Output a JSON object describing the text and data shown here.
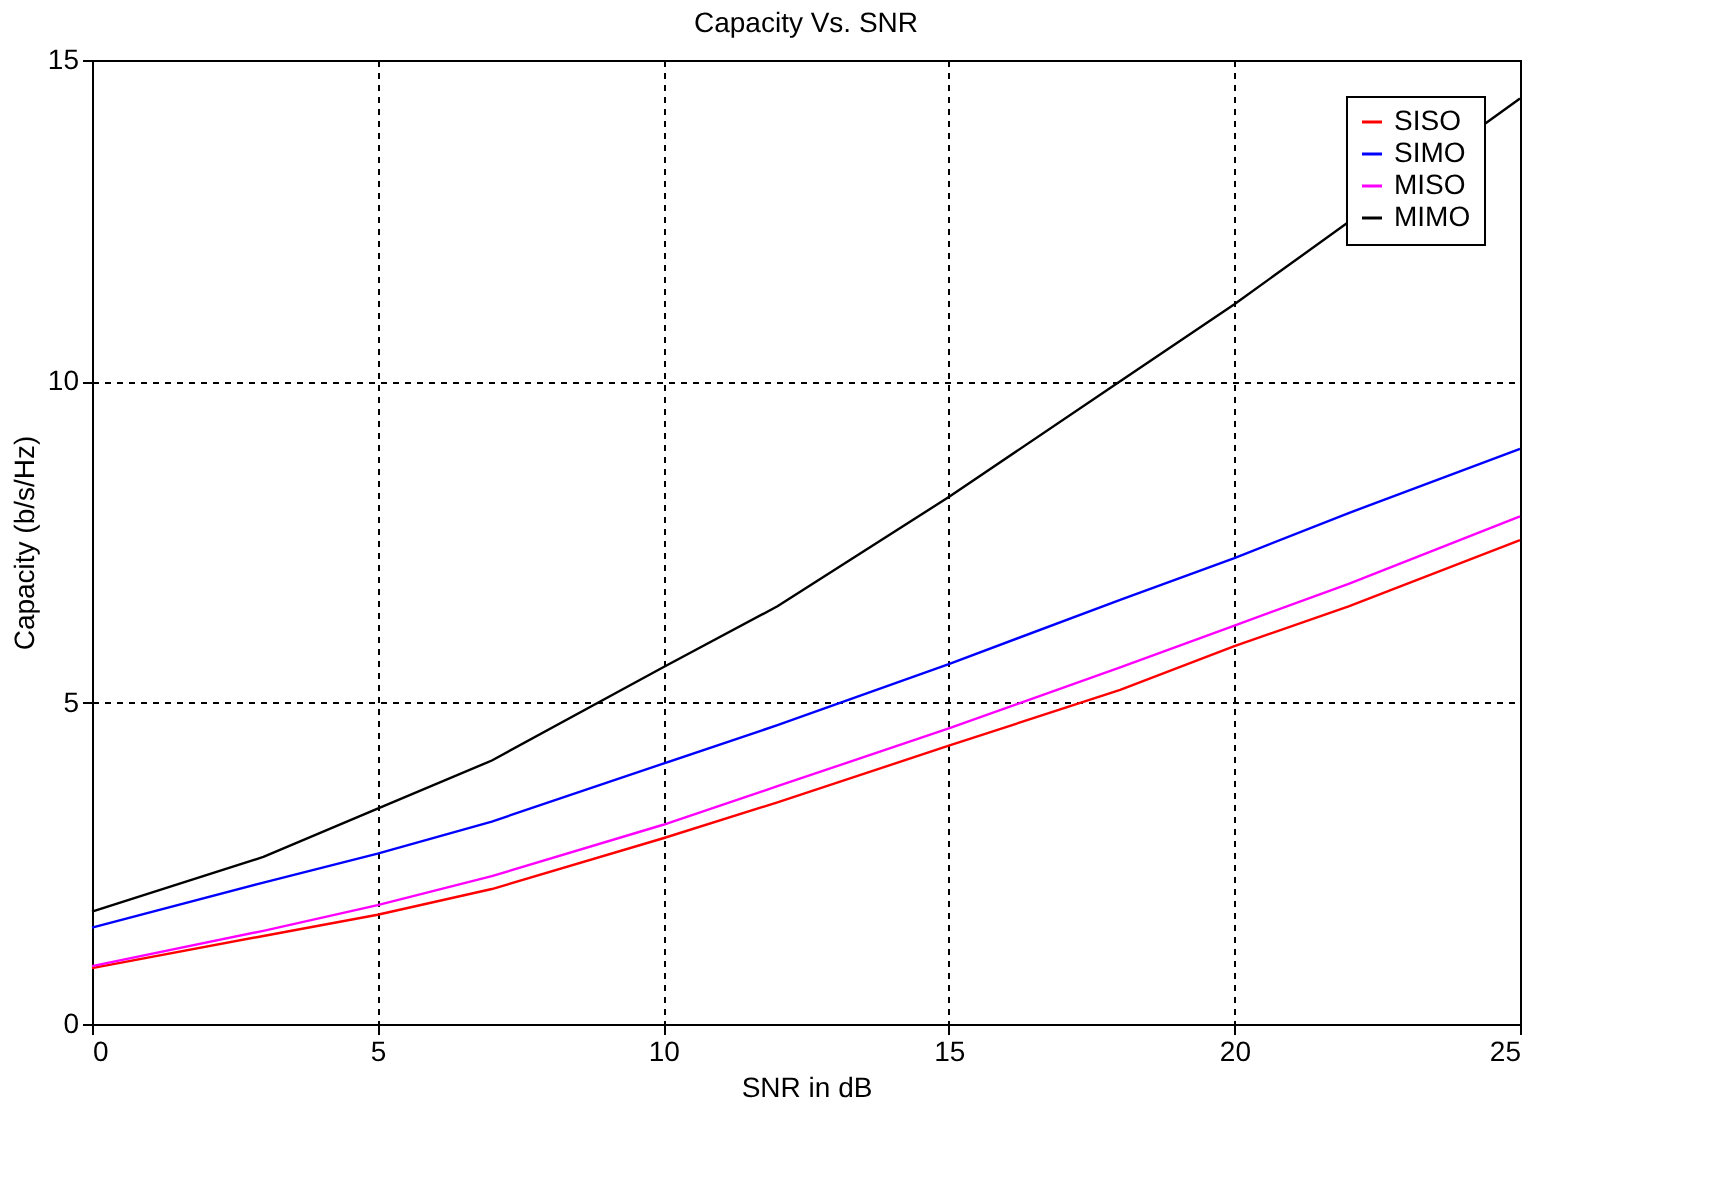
{
  "chart_data": {
    "type": "line",
    "title": "Capacity Vs. SNR",
    "xlabel": "SNR in dB",
    "ylabel": "Capacity (b/s/Hz)",
    "x": [
      0,
      3,
      5,
      7,
      10,
      12,
      15,
      18,
      20,
      22,
      25
    ],
    "series": [
      {
        "name": "SISO",
        "color": "#ff0000",
        "values": [
          0.87,
          1.37,
          1.7,
          2.1,
          2.89,
          3.45,
          4.33,
          5.2,
          5.88,
          6.5,
          7.53
        ]
      },
      {
        "name": "SIMO",
        "color": "#0000ff",
        "values": [
          1.5,
          2.2,
          2.65,
          3.15,
          4.05,
          4.65,
          5.6,
          6.6,
          7.25,
          7.95,
          8.95
        ]
      },
      {
        "name": "MISO",
        "color": "#ff00ff",
        "values": [
          0.9,
          1.45,
          1.85,
          2.3,
          3.1,
          3.7,
          4.6,
          5.55,
          6.2,
          6.85,
          7.9
        ]
      },
      {
        "name": "MIMO",
        "color": "#000000",
        "x": [
          0,
          3,
          5,
          7,
          10,
          12,
          15,
          18,
          20,
          25
        ],
        "values": [
          1.75,
          2.6,
          3.35,
          4.1,
          5.55,
          6.5,
          8.2,
          10.0,
          11.2,
          14.4
        ]
      }
    ],
    "xlim": [
      0,
      25
    ],
    "xticks": [
      0,
      5,
      10,
      15,
      20,
      25
    ],
    "ylim": [
      0,
      15
    ],
    "yticks": [
      0,
      5,
      10,
      15
    ],
    "grid": true,
    "legend": "top right",
    "marker": "none",
    "line_style": "solid"
  }
}
